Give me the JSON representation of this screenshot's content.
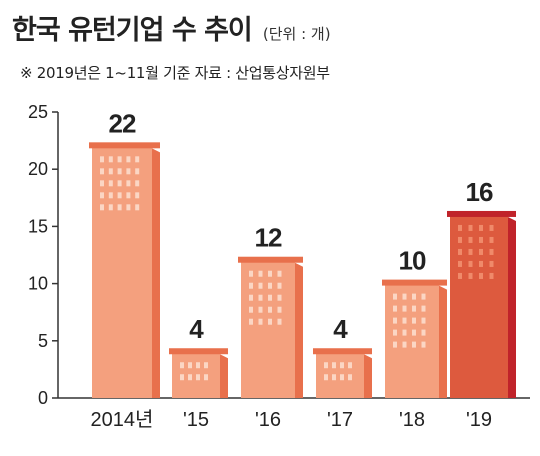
{
  "header": {
    "title": "한국 유턴기업 수 추이",
    "unit_note": "(단위 : 개)",
    "footnote": "※ 2019년은 1~11월 기준   자료 : 산업통상자원부"
  },
  "colors": {
    "bar_normal": "#f4a07e",
    "bar_normal_side": "#e8704c",
    "bar_highlight": "#dd5a3e",
    "bar_highlight_side": "#c0232a",
    "window": "#fbd6c4",
    "axis": "#333333"
  },
  "chart_data": {
    "type": "bar",
    "title": "한국 유턴기업 수 추이",
    "xlabel": "",
    "ylabel": "",
    "categories": [
      "2014년",
      "'15",
      "'16",
      "'17",
      "'18",
      "'19"
    ],
    "values": [
      22,
      4,
      12,
      4,
      10,
      16
    ],
    "highlight_index": 5,
    "ylim": [
      0,
      25
    ],
    "yticks": [
      0,
      5,
      10,
      15,
      20,
      25
    ],
    "grid": false,
    "legend": "none"
  }
}
